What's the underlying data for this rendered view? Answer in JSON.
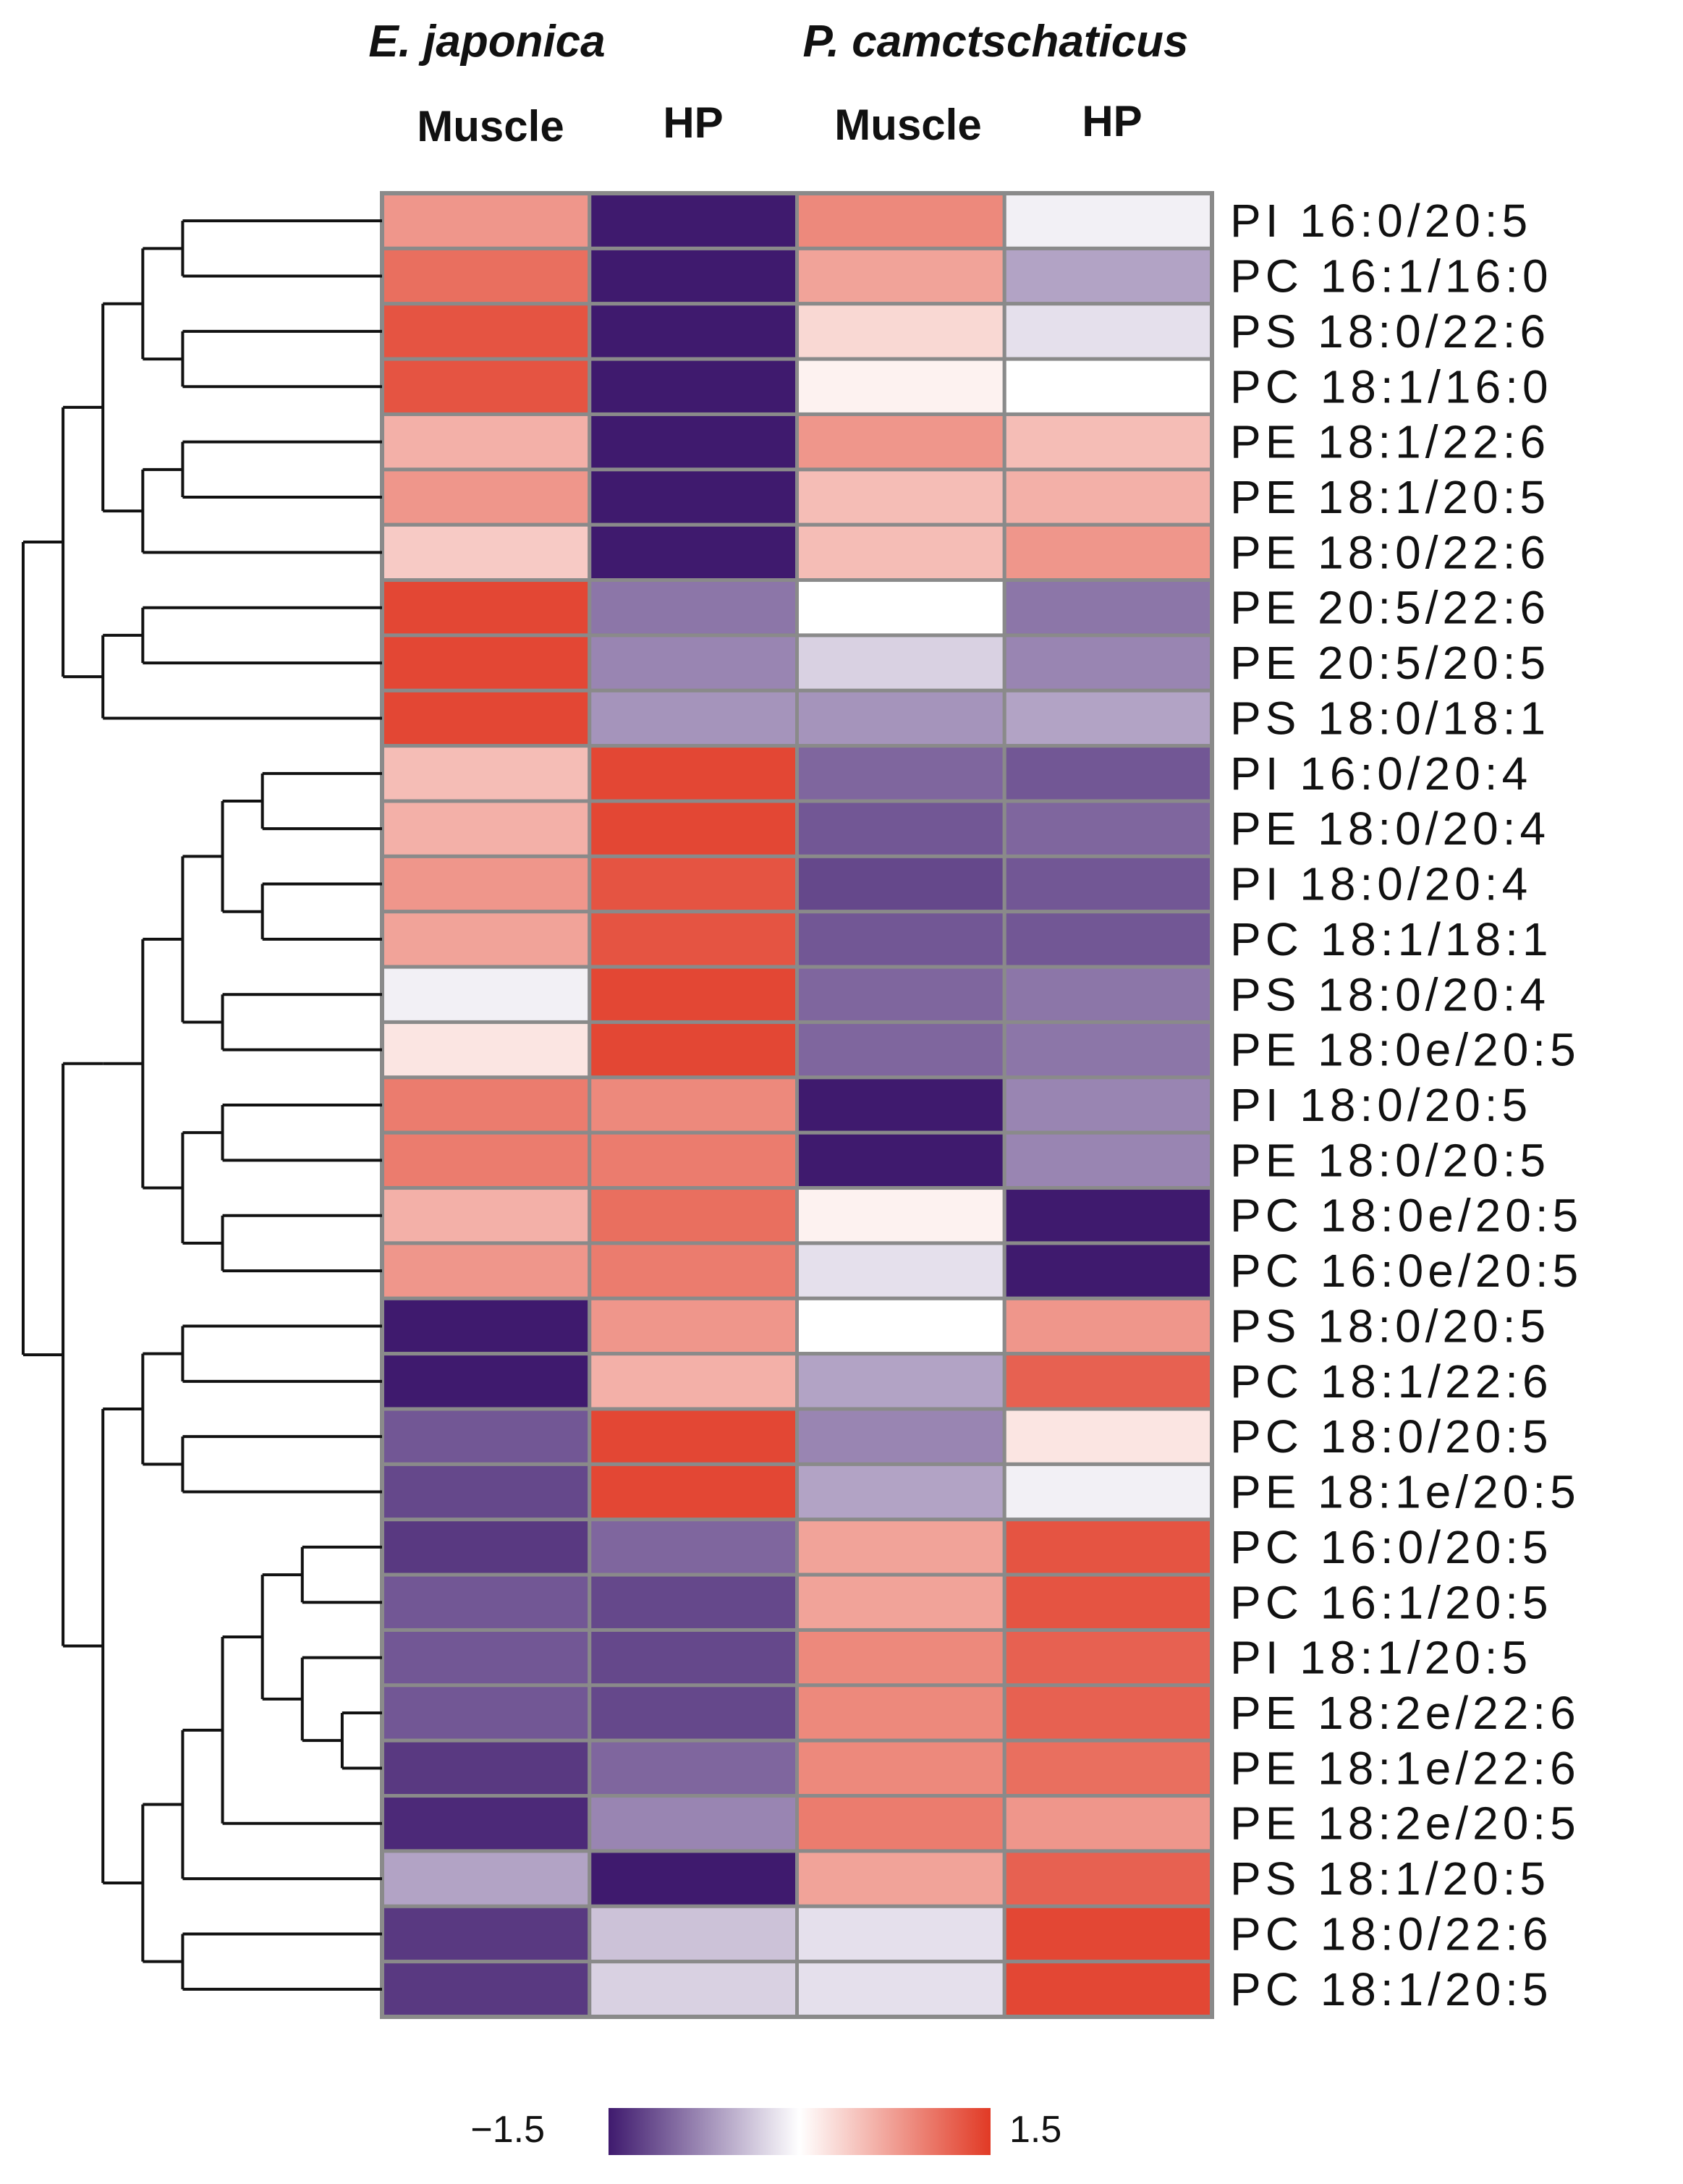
{
  "chart_data": {
    "type": "heatmap",
    "species": [
      {
        "name": "E. japonica",
        "columns": [
          0,
          1
        ]
      },
      {
        "name": "P. camctschaticus",
        "columns": [
          2,
          3
        ]
      }
    ],
    "columns": [
      "Muscle",
      "HP",
      "Muscle",
      "HP"
    ],
    "rows": [
      "PI 16:0/20:5",
      "PC 16:1/16:0",
      "PS 18:0/22:6",
      "PC 18:1/16:0",
      "PE 18:1/22:6",
      "PE 18:1/20:5",
      "PE 18:0/22:6",
      "PE 20:5/22:6",
      "PE 20:5/20:5",
      "PS 18:0/18:1",
      "PI 16:0/20:4",
      "PE 18:0/20:4",
      "PI 18:0/20:4",
      "PC 18:1/18:1",
      "PS 18:0/20:4",
      "PE 18:0e/20:5",
      "PI 18:0/20:5",
      "PE 18:0/20:5",
      "PC 18:0e/20:5",
      "PC 16:0e/20:5",
      "PS 18:0/20:5",
      "PC 18:1/22:6",
      "PC 18:0/20:5",
      "PE 18:1e/20:5",
      "PC 16:0/20:5",
      "PC 16:1/20:5",
      "PI 18:1/20:5",
      "PE 18:2e/22:6",
      "PE 18:1e/22:6",
      "PE 18:2e/20:5",
      "PS 18:1/20:5",
      "PC 18:0/22:6",
      "PC 18:1/20:5"
    ],
    "values": [
      [
        0.8,
        -1.5,
        0.9,
        -0.1
      ],
      [
        1.1,
        -1.5,
        0.7,
        -0.6
      ],
      [
        1.3,
        -1.5,
        0.3,
        -0.2
      ],
      [
        1.3,
        -1.5,
        0.1,
        0.0
      ],
      [
        0.6,
        -1.5,
        0.8,
        0.5
      ],
      [
        0.8,
        -1.5,
        0.5,
        0.6
      ],
      [
        0.4,
        -1.5,
        0.5,
        0.8
      ],
      [
        1.4,
        -0.9,
        0.0,
        -0.9
      ],
      [
        1.4,
        -0.8,
        -0.3,
        -0.8
      ],
      [
        1.4,
        -0.7,
        -0.7,
        -0.6
      ],
      [
        0.5,
        1.4,
        -1.0,
        -1.1
      ],
      [
        0.6,
        1.4,
        -1.1,
        -1.0
      ],
      [
        0.8,
        1.3,
        -1.2,
        -1.1
      ],
      [
        0.7,
        1.3,
        -1.1,
        -1.1
      ],
      [
        -0.1,
        1.4,
        -1.0,
        -0.9
      ],
      [
        0.2,
        1.4,
        -1.0,
        -0.9
      ],
      [
        1.0,
        0.9,
        -1.5,
        -0.8
      ],
      [
        1.0,
        1.0,
        -1.5,
        -0.8
      ],
      [
        0.6,
        1.1,
        0.1,
        -1.5
      ],
      [
        0.8,
        1.0,
        -0.2,
        -1.5
      ],
      [
        -1.5,
        0.8,
        0.0,
        0.8
      ],
      [
        -1.5,
        0.6,
        -0.6,
        1.2
      ],
      [
        -1.1,
        1.4,
        -0.8,
        0.2
      ],
      [
        -1.2,
        1.4,
        -0.6,
        -0.1
      ],
      [
        -1.3,
        -1.0,
        0.7,
        1.3
      ],
      [
        -1.1,
        -1.2,
        0.7,
        1.3
      ],
      [
        -1.1,
        -1.2,
        0.9,
        1.2
      ],
      [
        -1.1,
        -1.2,
        0.9,
        1.2
      ],
      [
        -1.3,
        -1.0,
        0.9,
        1.1
      ],
      [
        -1.4,
        -0.8,
        1.0,
        0.8
      ],
      [
        -0.6,
        -1.5,
        0.7,
        1.2
      ],
      [
        -1.3,
        -0.4,
        -0.2,
        1.4
      ],
      [
        -1.3,
        -0.3,
        -0.2,
        1.4
      ]
    ],
    "color_scale": {
      "min": -1.5,
      "max": 1.5,
      "min_label": "−1.5",
      "max_label": "1.5",
      "low_color": "#3f1a6e",
      "mid_color": "#ffffff",
      "high_color": "#e13a25"
    },
    "dendrogram": "row",
    "cell_border_color": "#8a8a8a"
  }
}
